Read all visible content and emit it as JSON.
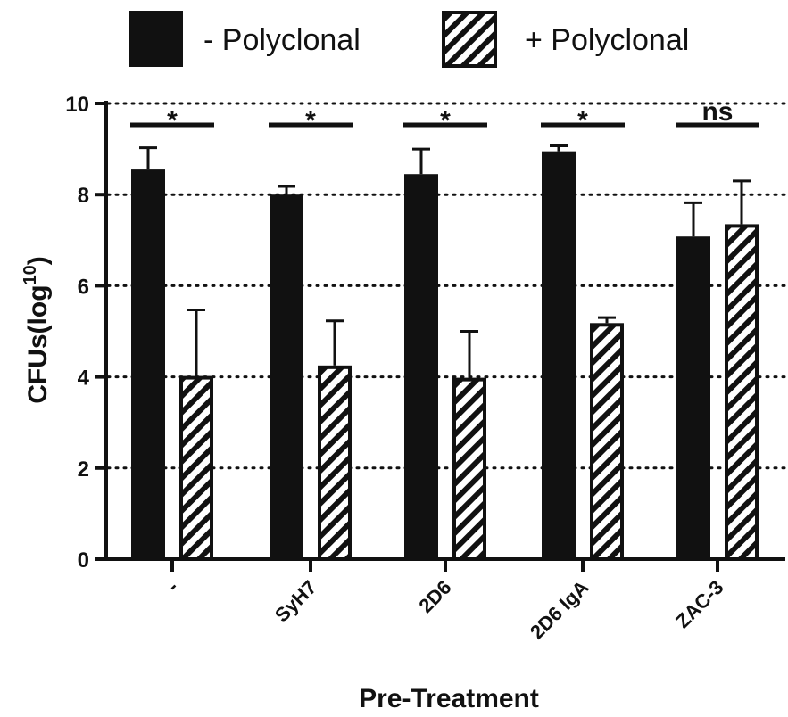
{
  "chart_data": {
    "type": "bar",
    "xlabel": "Pre-Treatment",
    "ylabel": "CFUs(log",
    "ylabel_sup": "10",
    "ylabel_close": ")",
    "ylim": [
      0,
      10
    ],
    "yticks": [
      0,
      2,
      4,
      6,
      8,
      10
    ],
    "ytick_labels": [
      "0",
      "2",
      "4",
      "6",
      "8",
      "10"
    ],
    "grid": "dotted horizontal at 4, 6, 8, 10",
    "legend_placement": "top",
    "categories": [
      "-",
      "SyH7",
      "2D6",
      "2D6 IgA",
      "ZAC-3"
    ],
    "series": [
      {
        "name": "- Polyclonal",
        "pattern": "solid",
        "color": "#111111",
        "values": [
          8.55,
          8.0,
          8.45,
          8.95,
          7.08
        ],
        "errors": [
          0.48,
          0.18,
          0.55,
          0.12,
          0.74
        ]
      },
      {
        "name": "+ Polyclonal",
        "pattern": "diagonal-hatch",
        "color": "#111111",
        "values": [
          4.02,
          4.25,
          3.98,
          5.18,
          7.35
        ],
        "errors": [
          1.45,
          0.98,
          1.02,
          0.12,
          0.95
        ]
      }
    ],
    "significance": [
      "*",
      "*",
      "*",
      "*",
      "ns"
    ]
  }
}
